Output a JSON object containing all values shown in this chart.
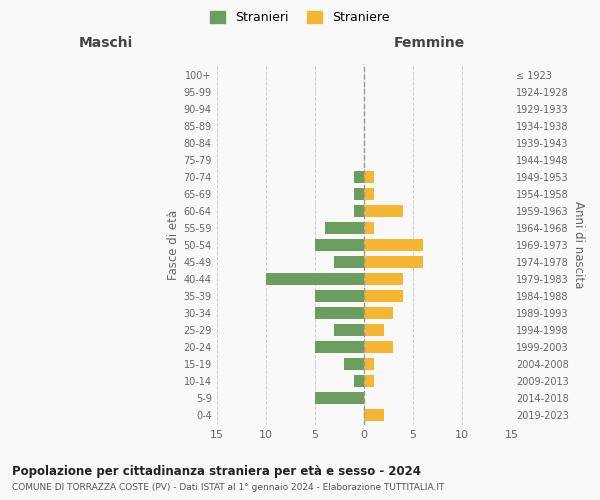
{
  "age_groups": [
    "0-4",
    "5-9",
    "10-14",
    "15-19",
    "20-24",
    "25-29",
    "30-34",
    "35-39",
    "40-44",
    "45-49",
    "50-54",
    "55-59",
    "60-64",
    "65-69",
    "70-74",
    "75-79",
    "80-84",
    "85-89",
    "90-94",
    "95-99",
    "100+"
  ],
  "birth_years": [
    "2019-2023",
    "2014-2018",
    "2009-2013",
    "2004-2008",
    "1999-2003",
    "1994-1998",
    "1989-1993",
    "1984-1988",
    "1979-1983",
    "1974-1978",
    "1969-1973",
    "1964-1968",
    "1959-1963",
    "1954-1958",
    "1949-1953",
    "1944-1948",
    "1939-1943",
    "1934-1938",
    "1929-1933",
    "1924-1928",
    "≤ 1923"
  ],
  "males": [
    0,
    5,
    1,
    2,
    5,
    3,
    5,
    5,
    10,
    3,
    5,
    4,
    1,
    1,
    1,
    0,
    0,
    0,
    0,
    0,
    0
  ],
  "females": [
    2,
    0,
    1,
    1,
    3,
    2,
    3,
    4,
    4,
    6,
    6,
    1,
    4,
    1,
    1,
    0,
    0,
    0,
    0,
    0,
    0
  ],
  "male_color": "#6b9e5e",
  "female_color": "#f5b731",
  "title_main": "Popolazione per cittadinanza straniera per età e sesso - 2024",
  "title_sub": "COMUNE DI TORRAZZA COSTE (PV) - Dati ISTAT al 1° gennaio 2024 - Elaborazione TUTTITALIA.IT",
  "legend_male": "Stranieri",
  "legend_female": "Straniere",
  "xlim": 15,
  "left_title": "Maschi",
  "right_title": "Femmine",
  "y_left_label": "Fasce di età",
  "y_right_label": "Anni di nascita",
  "bg_color": "#f9f9f9",
  "grid_color": "#cccccc"
}
